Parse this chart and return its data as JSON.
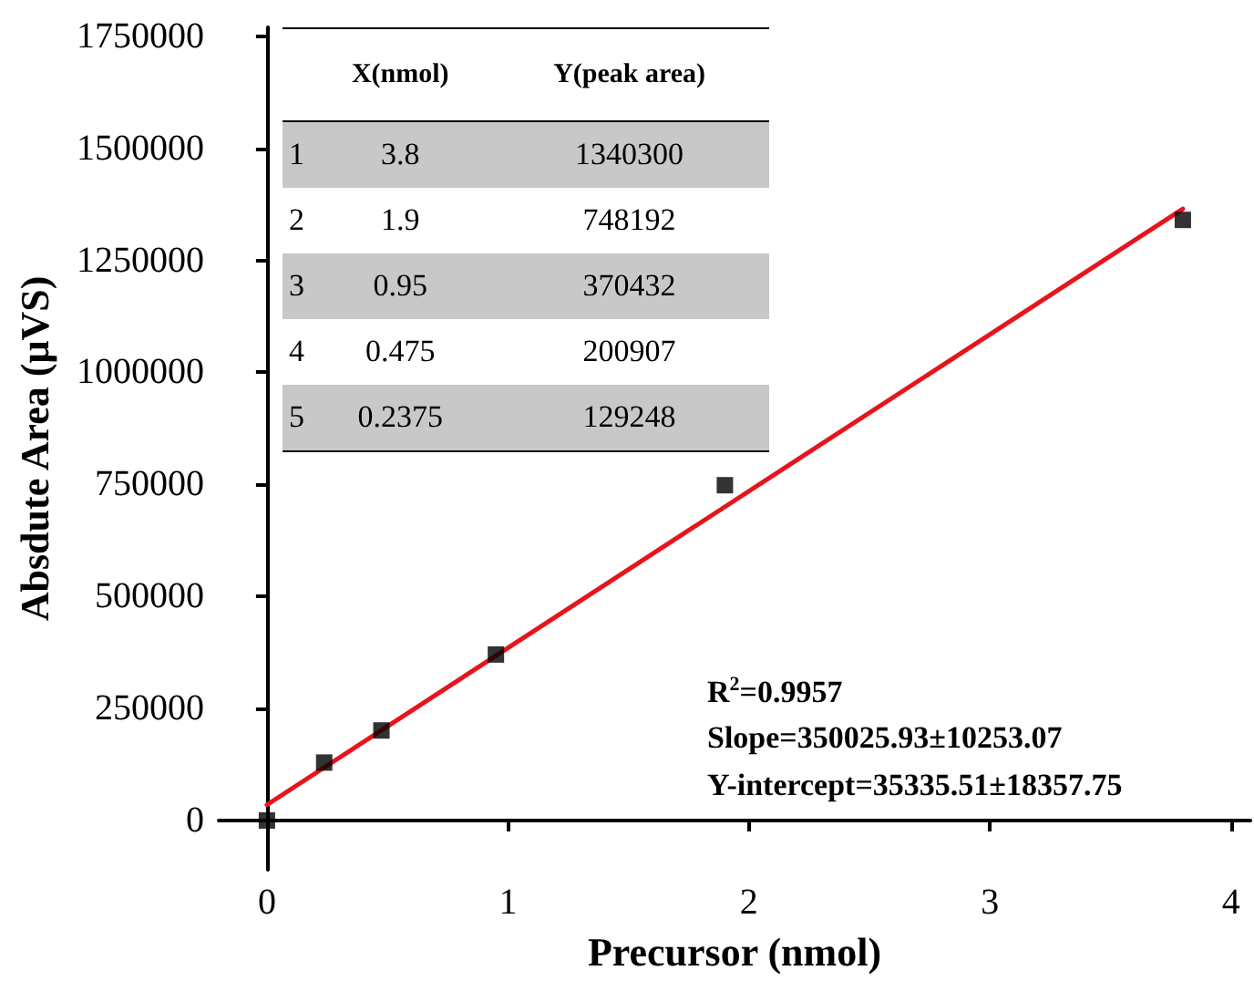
{
  "chart_data": {
    "type": "scatter",
    "xlabel": "Precursor (nmol)",
    "ylabel": "Absdute Area (μVS)",
    "series": [
      {
        "type": "scatter",
        "color": "#000000",
        "marker": "square",
        "x": [
          0,
          0.2375,
          0.475,
          0.95,
          1.9,
          3.8
        ],
        "values": [
          0,
          129248,
          200907,
          370432,
          748192,
          1340300
        ]
      },
      {
        "type": "line",
        "color": "#e8141c",
        "marker": "none",
        "x": [
          0,
          3.8
        ],
        "values": [
          35000,
          1365000
        ]
      }
    ],
    "xlim": [
      -0.2,
      4.08
    ],
    "xticks": [
      0,
      1,
      2,
      3,
      4
    ],
    "ylim": [
      -110000,
      1770000
    ],
    "yticks": [
      0,
      250000,
      500000,
      750000,
      1000000,
      1250000,
      1500000,
      1750000
    ],
    "grid": false,
    "annotations": [
      "R$^{2}$=0.9957",
      "Slope=350025.93±10253.07",
      "Y-intercept=35335.51±18357.75",
      "X(nmol)",
      "Y(peak area)",
      "1",
      "3.8",
      "1340300",
      "2",
      "1.9",
      "748192",
      "3",
      "0.95",
      "370432",
      "4",
      "0.475",
      "200907",
      "5",
      "0.2375",
      "129248"
    ]
  }
}
